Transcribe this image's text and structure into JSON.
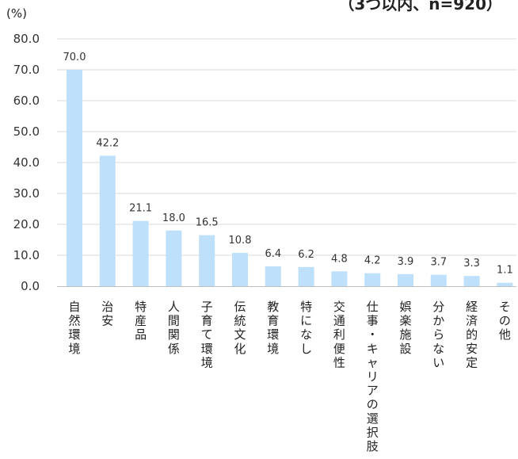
{
  "chart_data": {
    "type": "bar",
    "ylabel": "(%)",
    "subtitle": "（3つ以内、n=920）",
    "ylim": [
      0,
      80
    ],
    "yticks": [
      "0.0",
      "10.0",
      "20.0",
      "30.0",
      "40.0",
      "50.0",
      "60.0",
      "70.0",
      "80.0"
    ],
    "grid": true,
    "bar_color": "#bfe0fb",
    "categories": [
      "自然環境",
      "治安",
      "特産品",
      "人間関係",
      "子育て環境",
      "伝統文化",
      "教育環境",
      "特になし",
      "交通利便性",
      "仕事・キャリアの選択肢",
      "娯楽施設",
      "分からない",
      "経済的安定",
      "その他"
    ],
    "values": [
      70.0,
      42.2,
      21.1,
      18.0,
      16.5,
      10.8,
      6.4,
      6.2,
      4.8,
      4.2,
      3.9,
      3.7,
      3.3,
      1.1
    ],
    "value_labels": [
      "70.0",
      "42.2",
      "21.1",
      "18.0",
      "16.5",
      "10.8",
      "6.4",
      "6.2",
      "4.8",
      "4.2",
      "3.9",
      "3.7",
      "3.3",
      "1.1"
    ]
  }
}
